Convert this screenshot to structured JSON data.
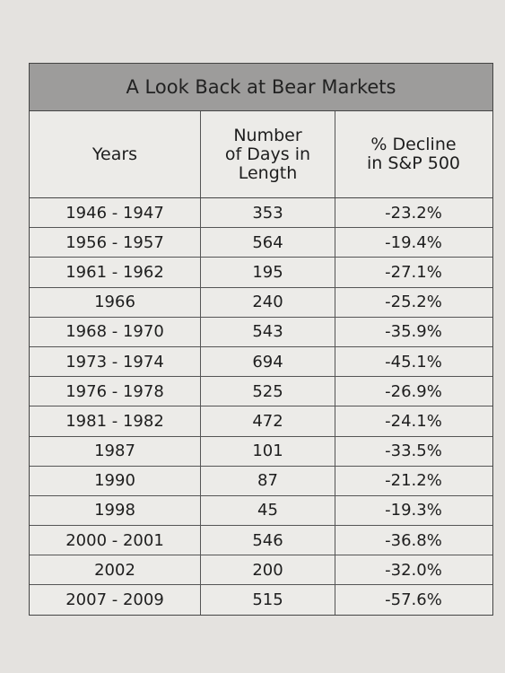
{
  "table": {
    "title": "A Look Back at Bear Markets",
    "columns": [
      [
        "Years"
      ],
      [
        "Number",
        "of Days in",
        "Length"
      ],
      [
        "% Decline",
        "in S&P 500"
      ]
    ],
    "rows": [
      [
        "1946 - 1947",
        "353",
        "-23.2%"
      ],
      [
        "1956 - 1957",
        "564",
        "-19.4%"
      ],
      [
        "1961 - 1962",
        "195",
        "-27.1%"
      ],
      [
        "1966",
        "240",
        "-25.2%"
      ],
      [
        "1968 - 1970",
        "543",
        "-35.9%"
      ],
      [
        "1973 - 1974",
        "694",
        "-45.1%"
      ],
      [
        "1976 - 1978",
        "525",
        "-26.9%"
      ],
      [
        "1981 - 1982",
        "472",
        "-24.1%"
      ],
      [
        "1987",
        "101",
        "-33.5%"
      ],
      [
        "1990",
        "87",
        "-21.2%"
      ],
      [
        "1998",
        "45",
        "-19.3%"
      ],
      [
        "2000 - 2001",
        "546",
        "-36.8%"
      ],
      [
        "2002",
        "200",
        "-32.0%"
      ],
      [
        "2007 - 2009",
        "515",
        "-57.6%"
      ]
    ]
  }
}
